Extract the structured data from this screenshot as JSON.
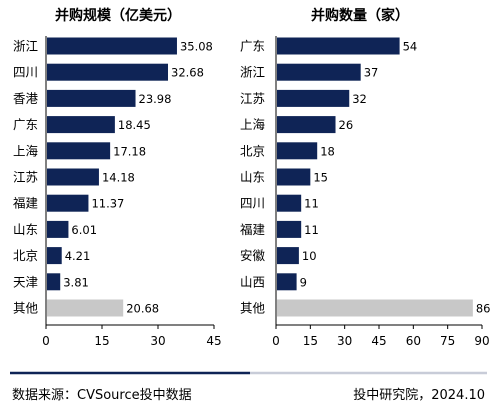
{
  "chart_data": [
    {
      "type": "bar",
      "orientation": "horizontal",
      "title": "并购规模（亿美元）",
      "categories": [
        "浙江",
        "四川",
        "香港",
        "广东",
        "上海",
        "江苏",
        "福建",
        "山东",
        "北京",
        "天津",
        "其他"
      ],
      "values": [
        35.08,
        32.68,
        23.98,
        18.45,
        17.18,
        14.18,
        11.37,
        6.01,
        4.21,
        3.81,
        20.68
      ],
      "value_labels": [
        "35.08",
        "32.68",
        "23.98",
        "18.45",
        "17.18",
        "14.18",
        "11.37",
        "6.01",
        "4.21",
        "3.81",
        "20.68"
      ],
      "xlim": [
        0,
        45
      ],
      "xticks": [
        "0",
        "15",
        "30",
        "45"
      ],
      "grid": false,
      "bar_color": "#0f2456",
      "highlight_category": "其他",
      "highlight_color": "#c8c8c8"
    },
    {
      "type": "bar",
      "orientation": "horizontal",
      "title": "并购数量（家）",
      "categories": [
        "广东",
        "浙江",
        "江苏",
        "上海",
        "北京",
        "山东",
        "四川",
        "福建",
        "安徽",
        "山西",
        "其他"
      ],
      "values": [
        54,
        37,
        32,
        26,
        18,
        15,
        11,
        11,
        10,
        9,
        86
      ],
      "value_labels": [
        "54",
        "37",
        "32",
        "26",
        "18",
        "15",
        "11",
        "11",
        "10",
        "9",
        "86"
      ],
      "xlim": [
        0,
        90
      ],
      "xticks": [
        "0",
        "15",
        "30",
        "45",
        "60",
        "75",
        "90"
      ],
      "grid": false,
      "bar_color": "#0f2456",
      "highlight_category": "其他",
      "highlight_color": "#c8c8c8"
    }
  ],
  "footer": {
    "source": "数据来源：CVSource投中数据",
    "credit": "投中研究院，2024.10"
  },
  "colors": {
    "footer_line_dark": "#0f2456",
    "footer_line_light": "#c8ccd8"
  }
}
